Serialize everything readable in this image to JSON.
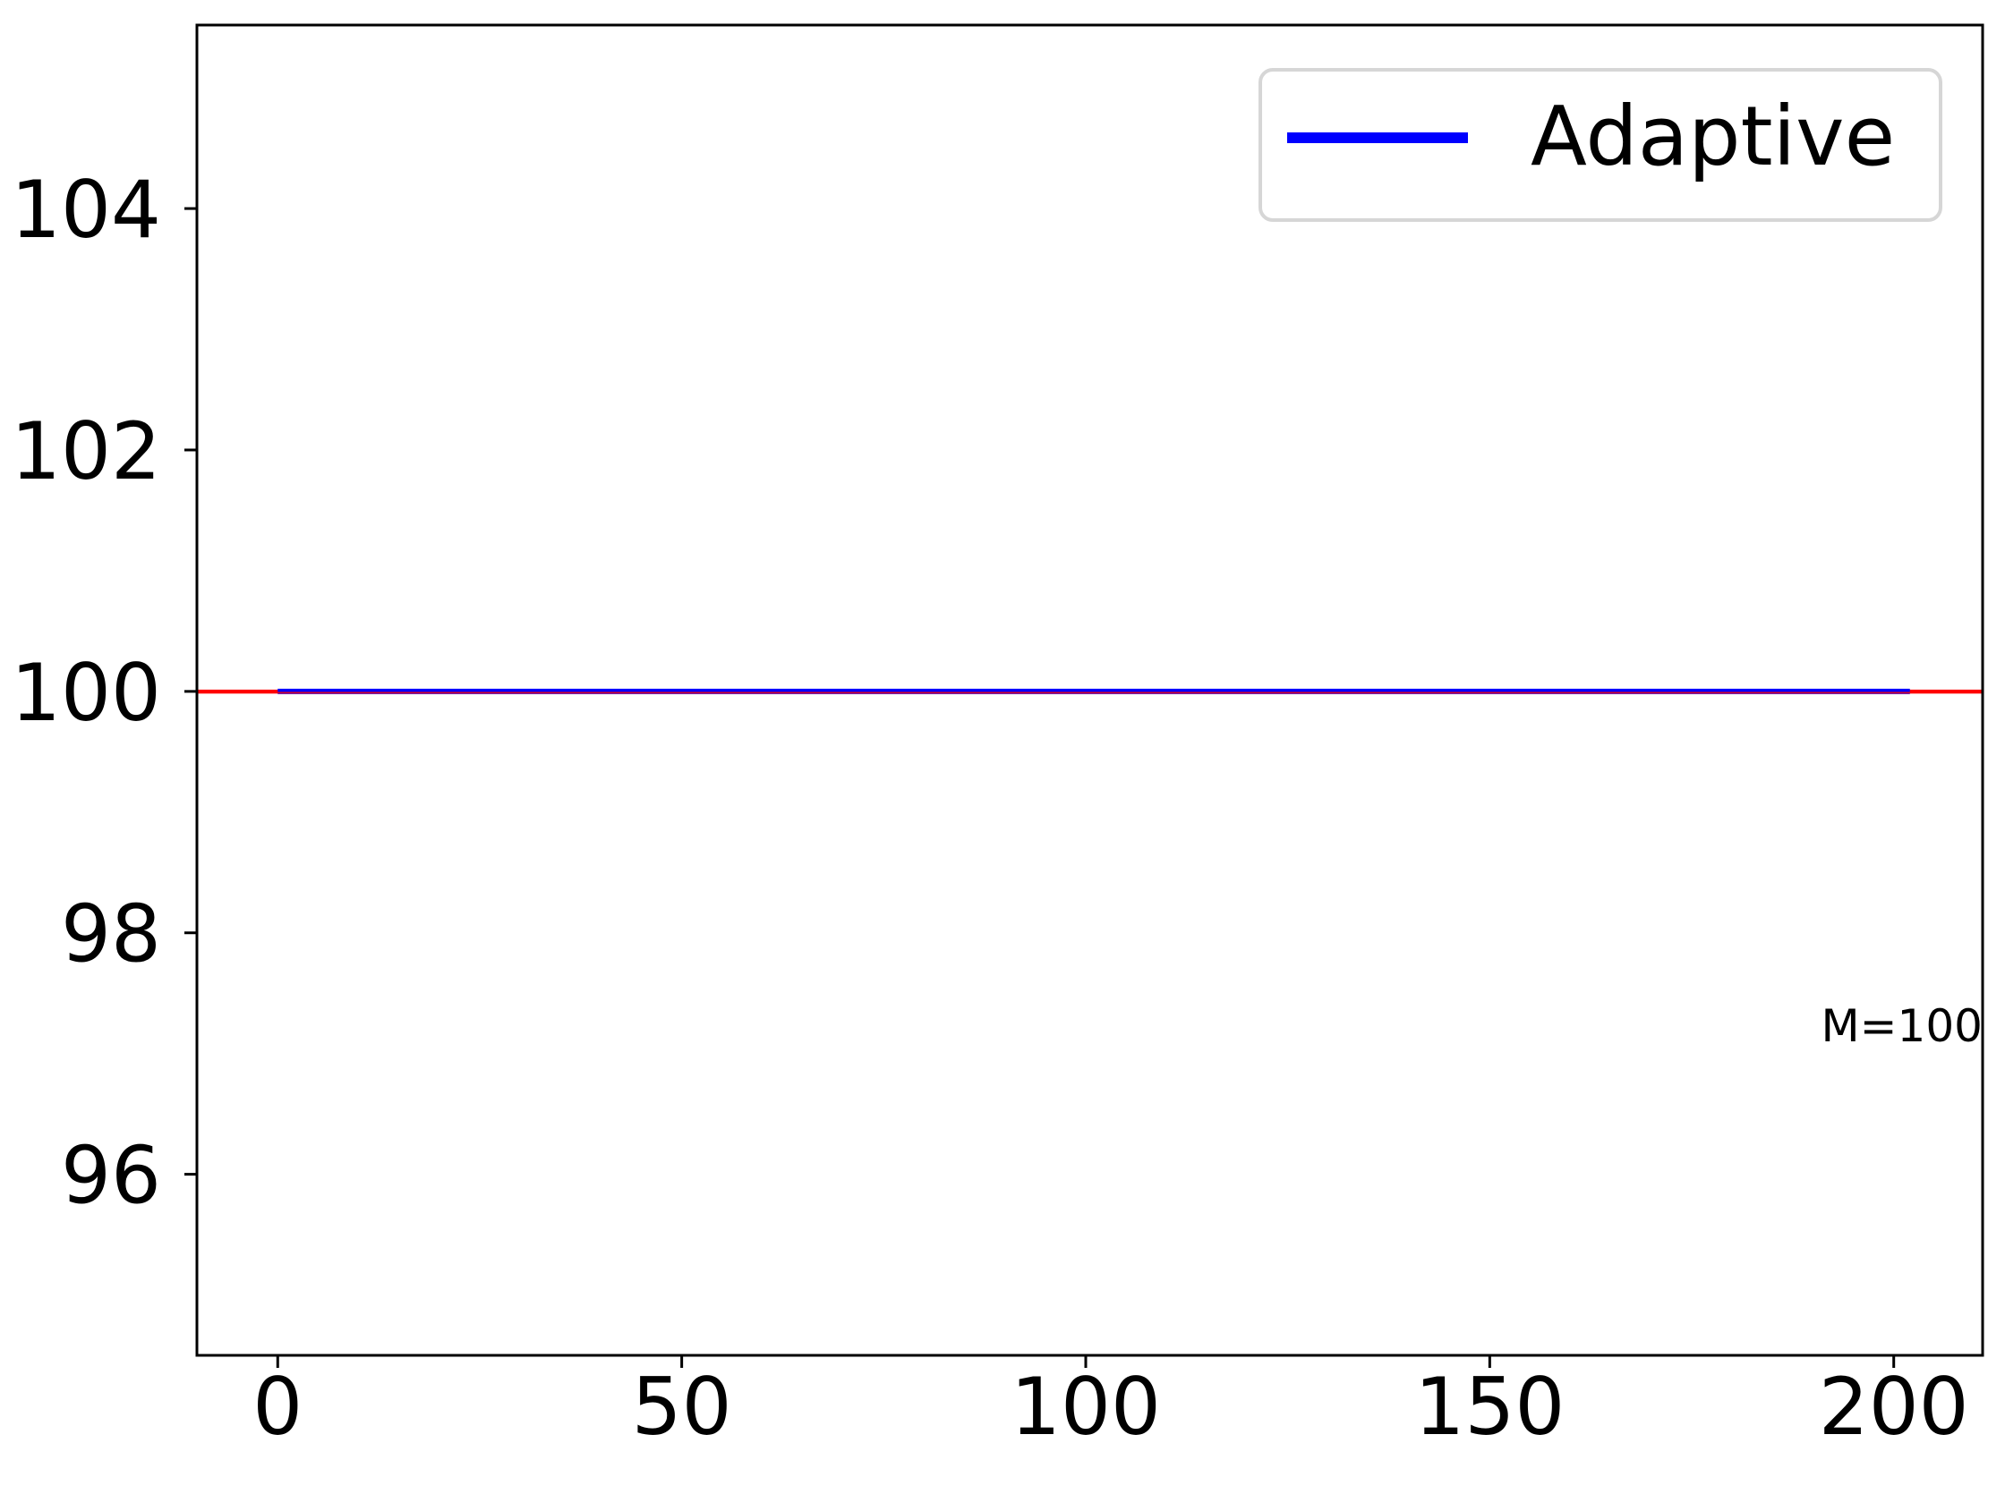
{
  "chart_data": {
    "type": "line",
    "title": "",
    "xlabel": "",
    "ylabel": "",
    "xlim": [
      -10,
      211
    ],
    "ylim": [
      94.5,
      105.52
    ],
    "xticks": [
      0,
      50,
      100,
      150,
      200
    ],
    "xtick_labels": [
      "0",
      "50",
      "100",
      "150",
      "200"
    ],
    "yticks": [
      96,
      98,
      100,
      102,
      104
    ],
    "ytick_labels": [
      "96",
      "98",
      "100",
      "102",
      "104"
    ],
    "grid": false,
    "legend_position": "upper-right",
    "series": [
      {
        "name": "Adaptive",
        "color": "#0000ff",
        "x": [
          0,
          202
        ],
        "y": [
          100,
          100
        ]
      }
    ],
    "reference_lines": [
      {
        "orientation": "horizontal",
        "y": 100,
        "color": "#ff0000"
      }
    ],
    "annotations": [
      {
        "text": "M=100",
        "x": 201,
        "y": 97.1
      }
    ],
    "colors": {
      "axis": "#000000",
      "legend_border": "#d6d6d6"
    }
  }
}
